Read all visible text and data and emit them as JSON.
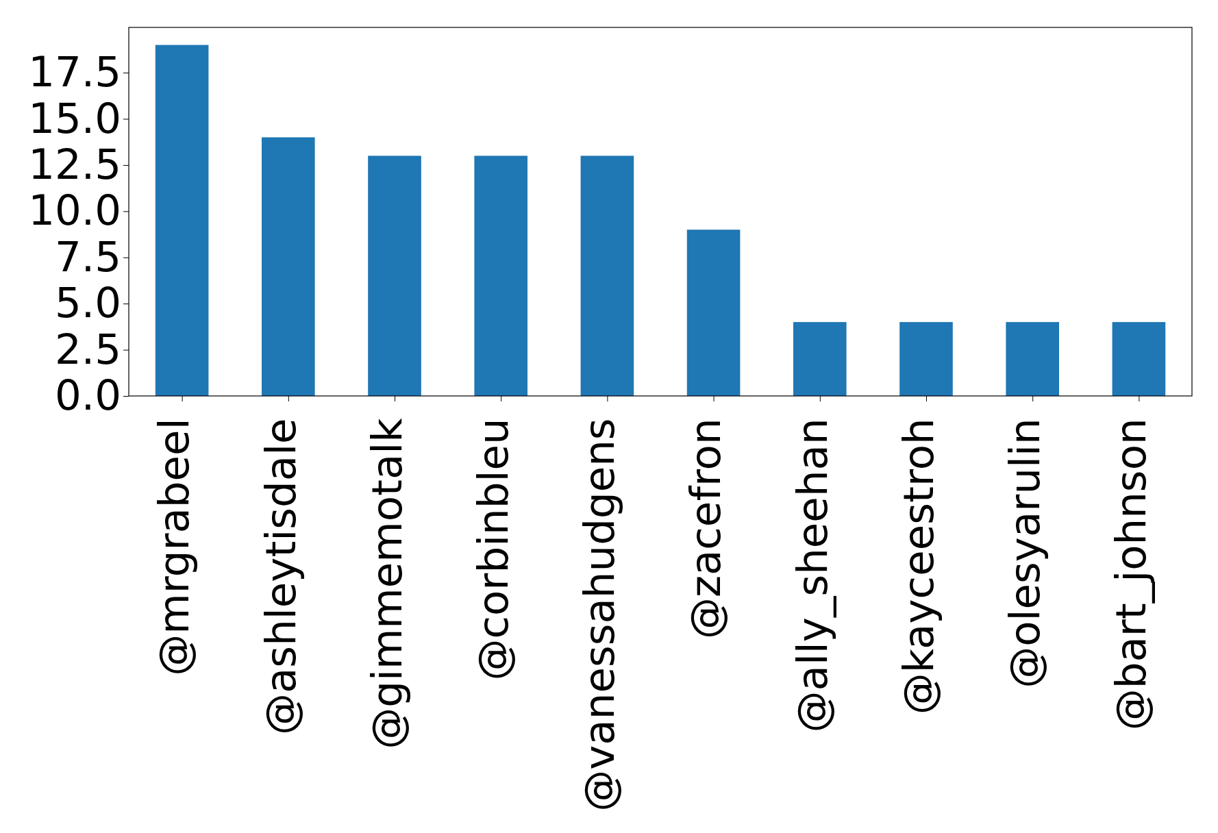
{
  "chart_data": {
    "type": "bar",
    "categories": [
      "@mrgrabeel",
      "@ashleytisdale",
      "@gimmemotalk",
      "@corbinbleu",
      "@vanessahudgens",
      "@zacefron",
      "@ally_sheehan",
      "@kayceestroh",
      "@olesyarulin",
      "@bart_johnson"
    ],
    "values": [
      19,
      14,
      13,
      13,
      13,
      9,
      4,
      4,
      4,
      4
    ],
    "color": "#1f77b4",
    "ylim": [
      0,
      19.95
    ],
    "yticks": [
      {
        "value": 0,
        "label": "0.0"
      },
      17.5,
      {
        "value": 15,
        "label": "15.0"
      },
      12.5,
      {
        "value": 10,
        "label": "10.0"
      },
      7.5,
      {
        "value": 5,
        "label": "5.0"
      },
      2.5
    ],
    "grid": false
  }
}
